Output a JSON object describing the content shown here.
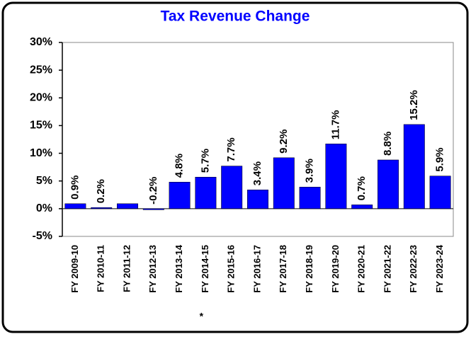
{
  "chart_data": {
    "type": "bar",
    "title": "Tax Revenue Change",
    "categories": [
      "FY 2009-10",
      "FY 2010-11",
      "FY 2011-12",
      "FY 2012-13",
      "FY 2013-14",
      "FY 2014-15",
      "FY 2015-16",
      "FY 2016-17",
      "FY 2017-18",
      "FY 2018-19",
      "FY 2019-20",
      "FY 2020-21",
      "FY 2021-22",
      "FY 2022-23",
      "FY 2023-24"
    ],
    "values": [
      0.9,
      0.2,
      0.9,
      -0.2,
      4.8,
      5.7,
      7.7,
      3.4,
      9.2,
      3.9,
      11.7,
      0.7,
      8.8,
      15.2,
      5.9
    ],
    "value_labels": [
      "0.9%",
      "0.2%",
      null,
      "-0.2%",
      "4.8%",
      "5.7%",
      "7.7%",
      "3.4%",
      "9.2%",
      "3.9%",
      "11.7%",
      "0.7%",
      "8.8%",
      "15.2%",
      "5.9%"
    ],
    "color": "#0000ff",
    "ylim": [
      -5,
      30
    ],
    "yticks": [
      {
        "value": -5,
        "label": "-5%"
      },
      {
        "value": 0,
        "label": "0%"
      },
      {
        "value": 5,
        "label": "5%"
      },
      {
        "value": 10,
        "label": "10%"
      },
      {
        "value": 15,
        "label": "15%"
      },
      {
        "value": 20,
        "label": "20%"
      },
      {
        "value": 25,
        "label": "25%"
      },
      {
        "value": 30,
        "label": "30%"
      }
    ],
    "grid": false,
    "annotations": [
      {
        "text": "*",
        "category": "FY 2014-15"
      }
    ]
  }
}
